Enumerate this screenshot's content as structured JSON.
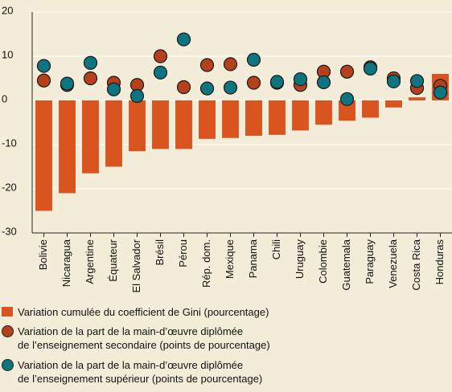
{
  "chart_data": {
    "type": "bar",
    "categories": [
      "Bolivie",
      "Nicaragua",
      "Argentine",
      "Équateur",
      "El Salvador",
      "Brésil",
      "Pérou",
      "Rép. dom.",
      "Mexique",
      "Panama",
      "Chili",
      "Uruguay",
      "Colombie",
      "Guatemala",
      "Paraguay",
      "Venezuela",
      "Costa Rica",
      "Honduras"
    ],
    "series": [
      {
        "name": "Variation cumulée du coefficient de Gini (pourcentage)",
        "type": "bar",
        "color": "#d9541e",
        "values": [
          -25,
          -21,
          -16.5,
          -15,
          -11.5,
          -11,
          -11,
          -8.7,
          -8.5,
          -8,
          -7.8,
          -6.8,
          -5.5,
          -4.6,
          -3.9,
          -1.6,
          0.7,
          6
        ]
      },
      {
        "name": "Variation de la part de la main-d’œuvre diplômée\nde l’enseignement secondaire (points de pourcentage)",
        "type": "scatter",
        "color": "#b4401c",
        "values": [
          4.5,
          3.5,
          5,
          4,
          3.5,
          10,
          3,
          8,
          8.2,
          4,
          4,
          3.5,
          6.5,
          6.5,
          7.5,
          5,
          2.8,
          3.3
        ]
      },
      {
        "name": "Variation de la part de la main-d’œuvre diplômée\nde l’enseignement supérieur (points de pourcentage)",
        "type": "scatter",
        "color": "#0e7480",
        "values": [
          7.8,
          3.8,
          8.5,
          2.5,
          1,
          6.3,
          13.8,
          2.7,
          2.9,
          9.2,
          4.2,
          4.8,
          4.1,
          0.3,
          7.2,
          4.3,
          4.4,
          1.8
        ]
      }
    ],
    "ylim": [
      -30,
      20
    ],
    "yticks": [
      -30,
      -20,
      -10,
      0,
      10,
      20
    ],
    "grid": true
  }
}
